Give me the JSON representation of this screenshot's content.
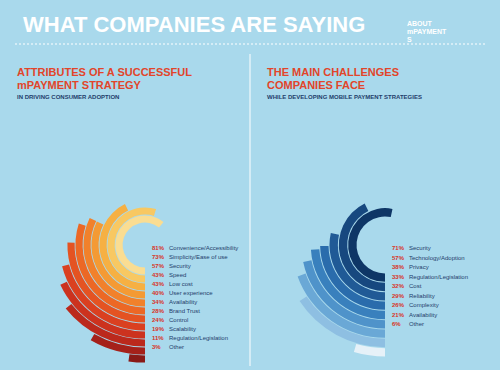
{
  "title": "WHAT COMPANIES ARE SAYING",
  "subtitle": "ABOUT mPAYMENTS",
  "chart_data": [
    {
      "type": "radial_bar",
      "title": "ATTRIBUTES OF A SUCCESSFUL mPAYMENT STRATEGY",
      "subtitle": "IN DRIVING CONSUMER ADOPTION",
      "categories": [
        "Convenience/Accessibility",
        "Simplicity/Ease of use",
        "Security",
        "Speed",
        "Low cost",
        "User experience",
        "Availability",
        "Brand Trust",
        "Control",
        "Scalability",
        "Regulation/Legislation",
        "Other"
      ],
      "values": [
        81,
        73,
        57,
        43,
        43,
        40,
        34,
        28,
        24,
        19,
        11,
        3
      ],
      "value_labels": [
        "81%",
        "73%",
        "57%",
        "43%",
        "43%",
        "40%",
        "34%",
        "28%",
        "24%",
        "19%",
        "11%",
        "3%"
      ],
      "colors": [
        "#fadd92",
        "#f8c862",
        "#f6b043",
        "#f49a34",
        "#f1812b",
        "#ec6825",
        "#e45322",
        "#da4020",
        "#cc321e",
        "#bb291c",
        "#a5211a",
        "#891a17"
      ],
      "ylim": [
        0,
        100
      ],
      "tick_labels": false
    },
    {
      "type": "radial_bar",
      "title": "THE MAIN CHALLENGES COMPANIES FACE",
      "subtitle": "WHILE DEVELOPING MOBILE PAYMENT STRATEGIES",
      "categories": [
        "Security",
        "Technology/Adoption",
        "Privacy",
        "Regulation/Legislation",
        "Cost",
        "Reliability",
        "Complexity",
        "Availability",
        "Other"
      ],
      "values": [
        71,
        57,
        38,
        33,
        32,
        29,
        26,
        21,
        6
      ],
      "value_labels": [
        "71%",
        "57%",
        "38%",
        "33%",
        "32%",
        "29%",
        "26%",
        "21%",
        "6%"
      ],
      "colors": [
        "#0e3666",
        "#17487f",
        "#205a96",
        "#2a6cac",
        "#3980bd",
        "#4f93ca",
        "#6aa8d6",
        "#8ebfe2",
        "#e6f1f8"
      ],
      "ylim": [
        0,
        100
      ],
      "tick_labels": false
    }
  ]
}
